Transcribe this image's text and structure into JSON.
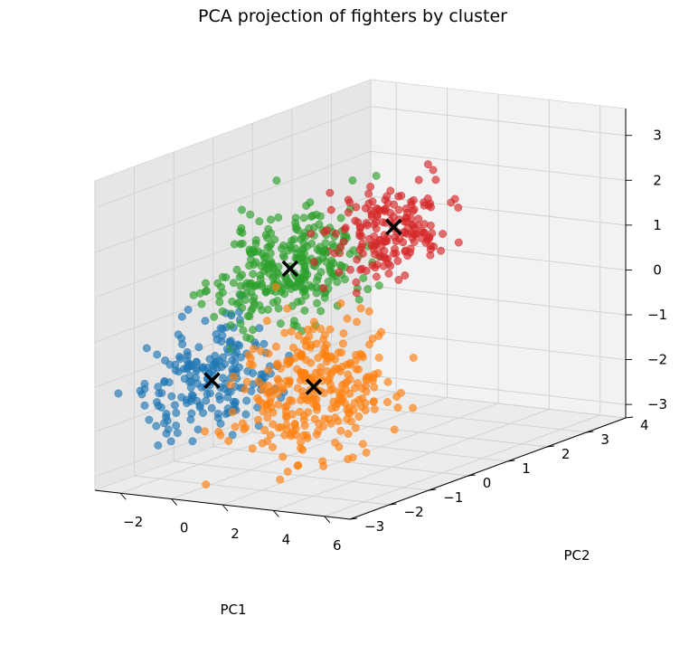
{
  "chart_data": {
    "type": "scatter",
    "projection": "3d",
    "title": "PCA projection of fighters by cluster",
    "xlabel": "PC1",
    "ylabel": "PC2",
    "zlabel": "",
    "xlim": [
      -3,
      7
    ],
    "ylim": [
      -3,
      4
    ],
    "zlim": [
      -3.3,
      3.6
    ],
    "x_ticks": [
      "−2",
      "0",
      "2",
      "4",
      "6"
    ],
    "y_ticks": [
      "−3",
      "−2",
      "−1",
      "0",
      "1",
      "2",
      "3",
      "4"
    ],
    "z_ticks": [
      "−3",
      "−2",
      "−1",
      "0",
      "1",
      "2",
      "3"
    ],
    "grid": true,
    "legend": "none",
    "marker_opacity": 0.65,
    "clusters": [
      {
        "color": "#1f77b4",
        "count": 200,
        "center": [
          -1.5,
          -1.0,
          -1.4
        ],
        "spread": [
          0.9,
          1.0,
          0.8
        ]
      },
      {
        "color": "#ff7f0e",
        "count": 300,
        "center": [
          2.8,
          -1.2,
          -1.2
        ],
        "spread": [
          1.2,
          1.2,
          1.0
        ]
      },
      {
        "color": "#2ca02c",
        "count": 300,
        "center": [
          -0.6,
          0.4,
          0.7
        ],
        "spread": [
          0.9,
          1.1,
          0.8
        ]
      },
      {
        "color": "#d62728",
        "count": 180,
        "center": [
          1.3,
          1.8,
          1.3
        ],
        "spread": [
          0.8,
          0.9,
          0.7
        ]
      }
    ],
    "centroids": {
      "color": "#000000",
      "marker": "x",
      "points": [
        [
          -1.5,
          -1.0,
          -1.4
        ],
        [
          2.8,
          -1.2,
          -1.2
        ],
        [
          -0.6,
          0.4,
          0.7
        ],
        [
          1.3,
          1.8,
          1.3
        ]
      ]
    }
  }
}
